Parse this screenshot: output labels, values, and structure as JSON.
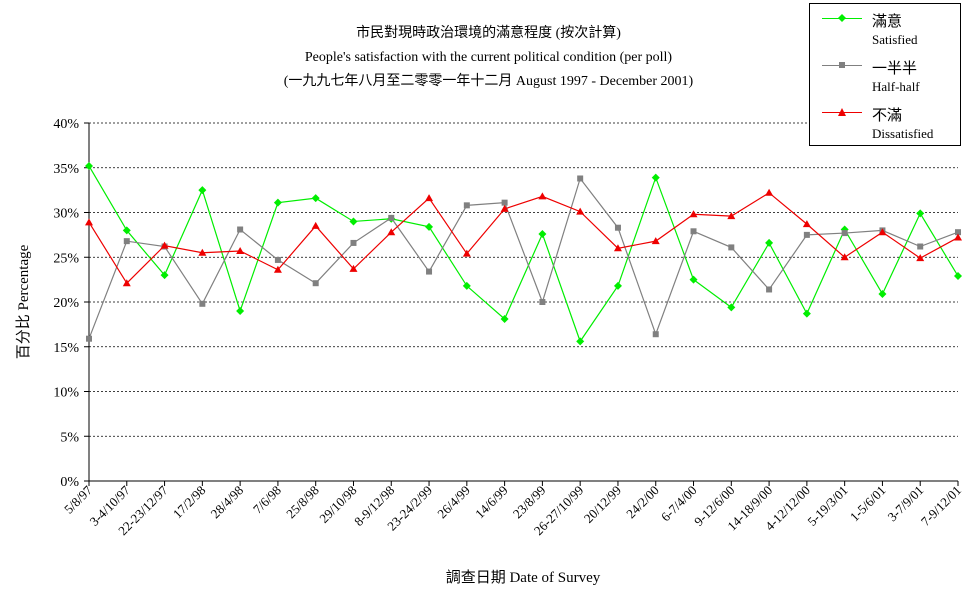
{
  "chart_data": {
    "type": "line",
    "title": "市民對現時政治環境的滿意程度 (按次計算)",
    "subtitle": "People's satisfaction with the current political condition (per poll)",
    "subtitle2": "(一九九七年八月至二零零一年十二月 August 1997 - December 2001)",
    "xlabel": "調查日期 Date of Survey",
    "ylabel": "百分比 Percentage",
    "ylim": [
      0,
      40
    ],
    "yticks": [
      "0%",
      "5%",
      "10%",
      "15%",
      "20%",
      "25%",
      "30%",
      "35%",
      "40%"
    ],
    "grid": true,
    "legend_position": "top-right",
    "categories": [
      "5/8/97",
      "3-4/10/97",
      "22-23/12/97",
      "17/2/98",
      "28/4/98",
      "7/6/98",
      "25/8/98",
      "29/10/98",
      "8-9/12/98",
      "23-24/2/99",
      "26/4/99",
      "14/6/99",
      "23/8/99",
      "26-27/10/99",
      "20/12/99",
      "24/2/00",
      "6-7/4/00",
      "9-12/6/00",
      "14-18/9/00",
      "4-12/12/00",
      "5-19/3/01",
      "1-5/6/01",
      "3-7/9/01",
      "7-9/12/01"
    ],
    "series": [
      {
        "name": "滿意",
        "name_en": "Satisfied",
        "color": "#00ee00",
        "marker": "diamond",
        "values": [
          35.2,
          28.0,
          23.0,
          32.5,
          19.0,
          31.1,
          31.6,
          29.0,
          29.3,
          28.4,
          21.8,
          18.1,
          27.6,
          15.6,
          21.8,
          33.9,
          22.5,
          19.4,
          26.6,
          18.7,
          28.1,
          20.9,
          29.9,
          22.9
        ]
      },
      {
        "name": "一半半",
        "name_en": "Half-half",
        "color": "#808080",
        "marker": "square",
        "values": [
          15.9,
          26.8,
          26.2,
          19.8,
          28.1,
          24.7,
          22.1,
          26.6,
          29.4,
          23.4,
          30.8,
          31.1,
          20.0,
          33.8,
          28.3,
          16.4,
          27.9,
          26.1,
          21.4,
          27.5,
          27.7,
          28.0,
          26.2,
          27.8
        ]
      },
      {
        "name": "不滿",
        "name_en": "Dissatisfied",
        "color": "#ee0000",
        "marker": "triangle",
        "values": [
          28.9,
          22.1,
          26.3,
          25.5,
          25.7,
          23.6,
          28.5,
          23.7,
          27.8,
          31.6,
          25.4,
          30.4,
          31.8,
          30.1,
          26.0,
          26.8,
          29.8,
          29.6,
          32.2,
          28.7,
          25.0,
          27.8,
          24.9,
          27.2
        ]
      }
    ]
  }
}
